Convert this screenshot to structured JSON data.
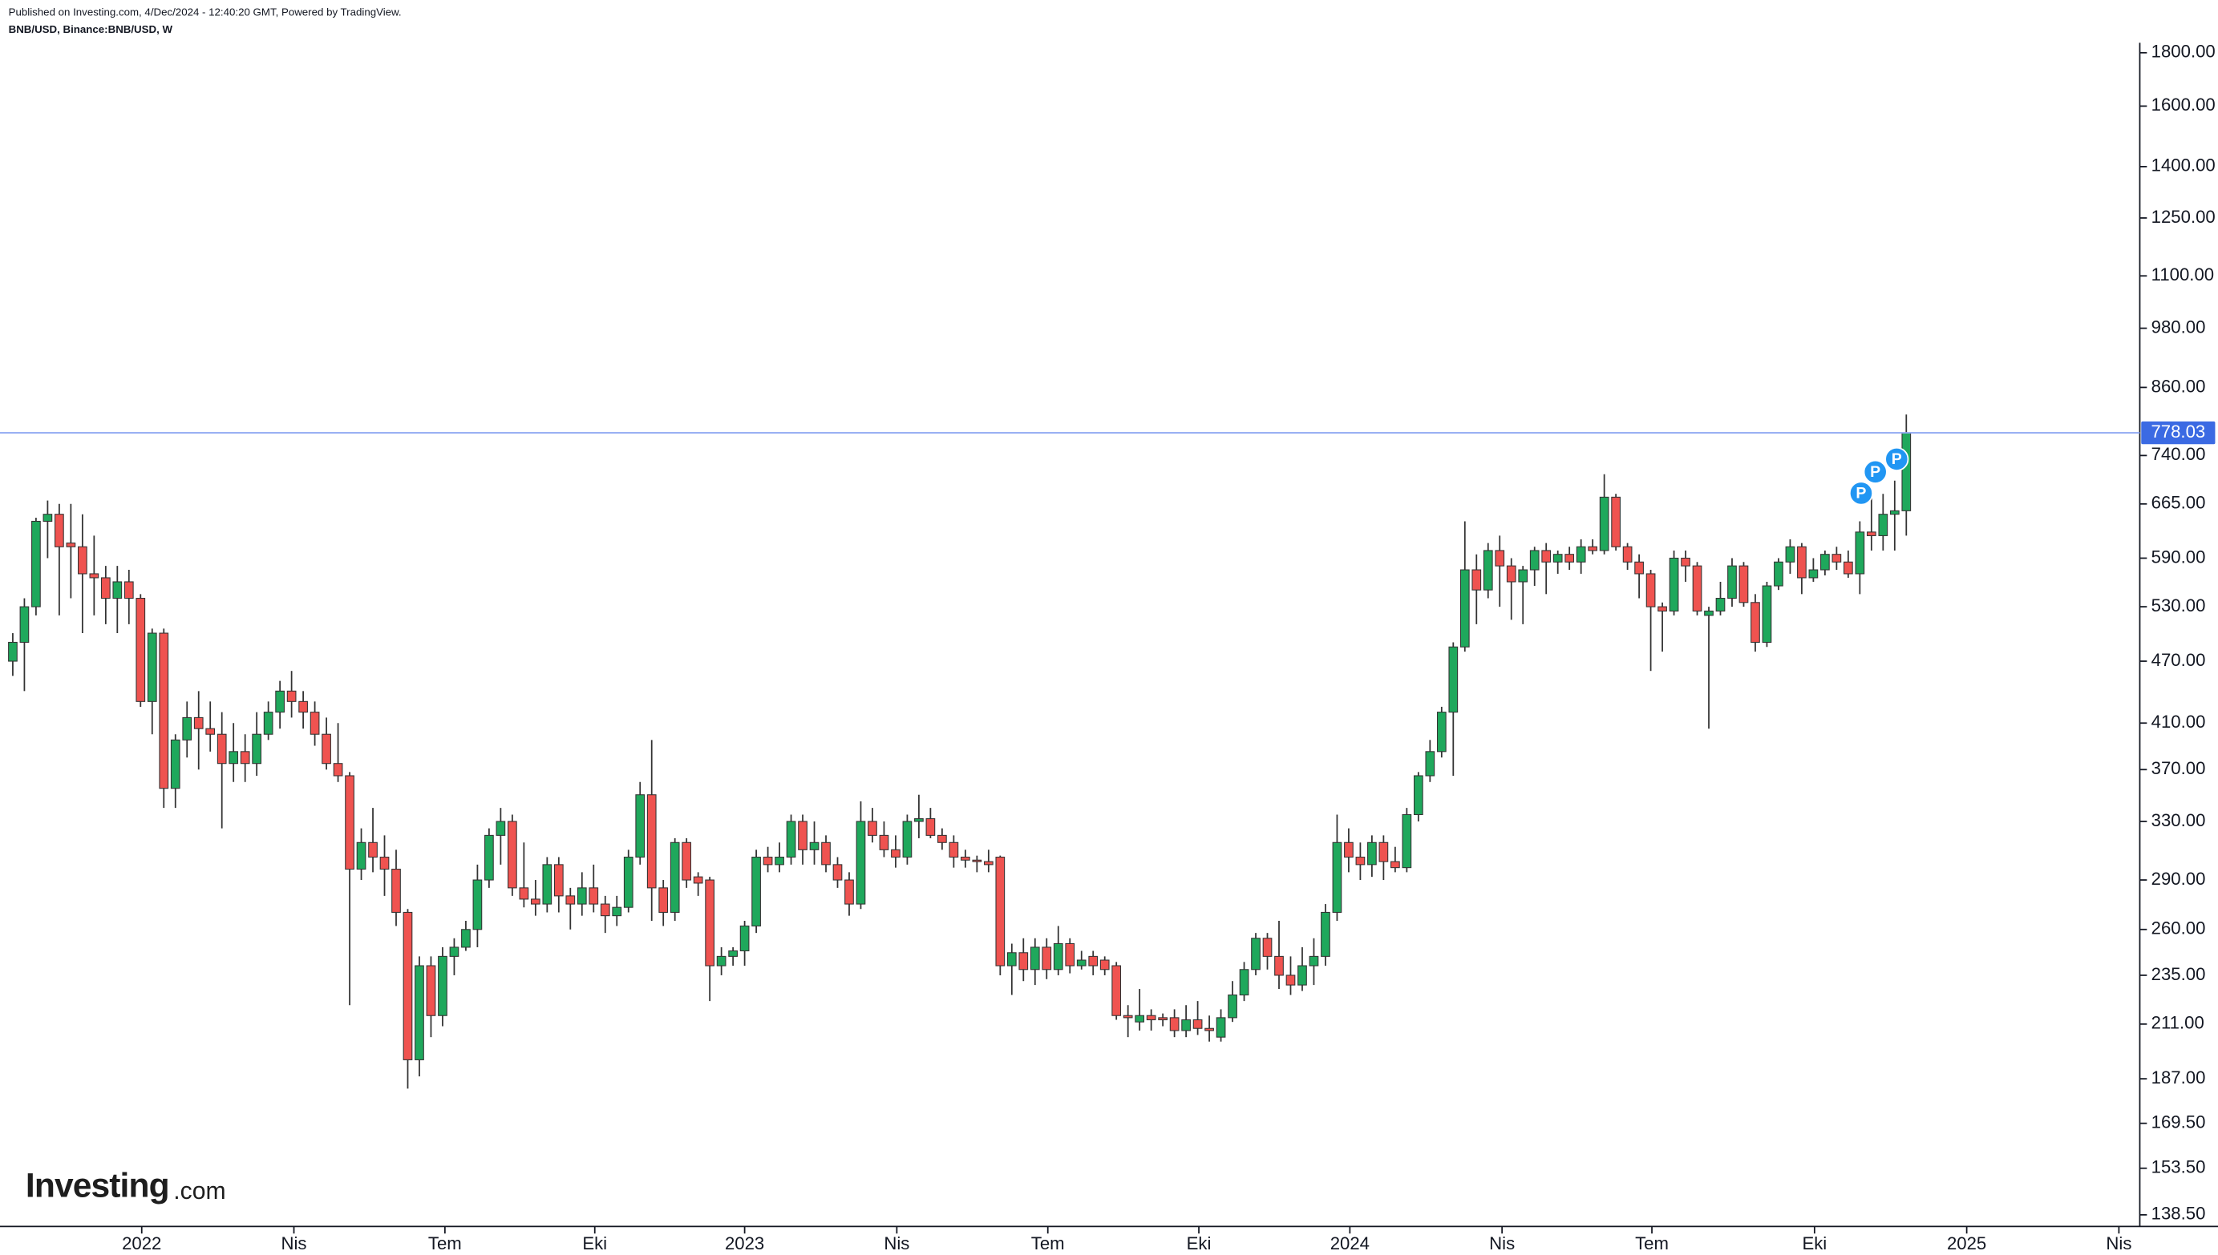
{
  "chart_data": {
    "type": "candlestick",
    "published": "Published on Investing.com, 4/Dec/2024 - 12:40:20 GMT, Powered by TradingView.",
    "symbol": "BNB/USD, Binance:BNB/USD, W",
    "logo": "Investing",
    "logo_suffix": ".com",
    "last_price": 778.03,
    "markers": [
      "P",
      "P",
      "P"
    ],
    "up_color": "#1fa85c",
    "down_color": "#ef5350",
    "log_scale": true,
    "ylim": [
      135,
      1840
    ],
    "yticks": [
      {
        "value": 138.5,
        "label": "138.50"
      },
      {
        "value": 153.5,
        "label": "153.50"
      },
      {
        "value": 169.5,
        "label": "169.50"
      },
      {
        "value": 187,
        "label": "187.00"
      },
      {
        "value": 211,
        "label": "211.00"
      },
      {
        "value": 235,
        "label": "235.00"
      },
      {
        "value": 260,
        "label": "260.00"
      },
      {
        "value": 290,
        "label": "290.00"
      },
      {
        "value": 330,
        "label": "330.00"
      },
      {
        "value": 370,
        "label": "370.00"
      },
      {
        "value": 410,
        "label": "410.00"
      },
      {
        "value": 470,
        "label": "470.00"
      },
      {
        "value": 530,
        "label": "530.00"
      },
      {
        "value": 590,
        "label": "590.00"
      },
      {
        "value": 665,
        "label": "665.00"
      },
      {
        "value": 740,
        "label": "740.00"
      },
      {
        "value": 860,
        "label": "860.00"
      },
      {
        "value": 980,
        "label": "980.00"
      },
      {
        "value": 1100,
        "label": "1100.00"
      },
      {
        "value": 1250,
        "label": "1250.00"
      },
      {
        "value": 1400,
        "label": "1400.00"
      },
      {
        "value": 1600,
        "label": "1600.00"
      },
      {
        "value": 1800,
        "label": "1800.00"
      }
    ],
    "xlim": [
      -1.1,
      183.1
    ],
    "xticks": [
      {
        "value": 11.1,
        "label": "2022"
      },
      {
        "value": 24.2,
        "label": "Nis"
      },
      {
        "value": 37.2,
        "label": "Tem"
      },
      {
        "value": 50.1,
        "label": "Eki"
      },
      {
        "value": 63.0,
        "label": "2023"
      },
      {
        "value": 76.1,
        "label": "Nis"
      },
      {
        "value": 89.1,
        "label": "Tem"
      },
      {
        "value": 102.1,
        "label": "Eki"
      },
      {
        "value": 115.1,
        "label": "2024"
      },
      {
        "value": 128.2,
        "label": "Nis"
      },
      {
        "value": 141.1,
        "label": "Tem"
      },
      {
        "value": 155.1,
        "label": "Eki"
      },
      {
        "value": 168.2,
        "label": "2025"
      },
      {
        "value": 181.3,
        "label": "Nis"
      }
    ],
    "open": [
      470,
      490,
      530,
      640,
      650,
      610,
      605,
      570,
      565,
      540,
      560,
      540,
      430,
      500,
      355,
      395,
      415,
      405,
      400,
      375,
      385,
      375,
      400,
      420,
      440,
      430,
      420,
      400,
      375,
      365,
      297,
      315,
      305,
      297,
      270,
      195,
      240,
      215,
      245,
      250,
      260,
      290,
      320,
      330,
      285,
      278,
      275,
      300,
      280,
      275,
      285,
      275,
      268,
      273,
      305,
      350,
      285,
      270,
      315,
      292,
      290,
      240,
      245,
      248,
      262,
      305,
      300,
      305,
      330,
      310,
      315,
      300,
      290,
      275,
      330,
      320,
      310,
      305,
      330,
      332,
      320,
      315,
      305,
      303,
      302,
      305,
      240,
      247,
      238,
      250,
      238,
      252,
      240,
      245,
      243,
      240,
      215,
      212,
      215,
      214,
      214,
      208,
      213,
      209,
      205,
      214,
      225,
      238,
      255,
      245,
      235,
      230,
      240,
      245,
      270,
      315,
      305,
      300,
      315,
      302,
      298,
      335,
      365,
      385,
      420,
      485,
      575,
      550,
      600,
      580,
      560,
      575,
      600,
      585,
      595,
      585,
      605,
      600,
      675,
      605,
      585,
      570,
      530,
      525,
      590,
      580,
      520,
      525,
      540,
      580,
      535,
      490,
      555,
      585,
      605,
      565,
      575,
      595,
      585,
      570,
      625,
      620,
      650,
      655
    ],
    "high": [
      500,
      540,
      645,
      670,
      665,
      665,
      650,
      620,
      580,
      580,
      575,
      545,
      505,
      505,
      400,
      430,
      440,
      430,
      420,
      410,
      400,
      420,
      430,
      450,
      460,
      440,
      430,
      415,
      410,
      368,
      325,
      340,
      320,
      310,
      272,
      245,
      245,
      250,
      255,
      265,
      300,
      325,
      340,
      335,
      315,
      290,
      305,
      305,
      285,
      295,
      300,
      280,
      280,
      310,
      360,
      395,
      290,
      318,
      318,
      295,
      292,
      250,
      250,
      265,
      310,
      312,
      315,
      335,
      335,
      330,
      320,
      305,
      295,
      345,
      340,
      330,
      320,
      335,
      350,
      340,
      325,
      320,
      310,
      306,
      310,
      306,
      252,
      255,
      255,
      255,
      262,
      255,
      248,
      248,
      245,
      242,
      220,
      228,
      218,
      216,
      218,
      220,
      222,
      215,
      218,
      232,
      242,
      258,
      258,
      265,
      245,
      250,
      255,
      275,
      335,
      325,
      315,
      320,
      320,
      312,
      340,
      368,
      395,
      425,
      490,
      640,
      595,
      610,
      620,
      590,
      580,
      605,
      610,
      600,
      605,
      615,
      615,
      710,
      680,
      610,
      595,
      575,
      535,
      600,
      600,
      585,
      530,
      560,
      590,
      585,
      545,
      560,
      590,
      615,
      610,
      590,
      600,
      605,
      600,
      640,
      680,
      680,
      700,
      810
    ],
    "low": [
      455,
      440,
      520,
      590,
      520,
      540,
      500,
      520,
      510,
      500,
      510,
      425,
      400,
      340,
      340,
      380,
      370,
      385,
      325,
      360,
      360,
      365,
      395,
      405,
      415,
      405,
      390,
      370,
      360,
      220,
      290,
      295,
      280,
      262,
      183,
      188,
      205,
      210,
      235,
      248,
      250,
      285,
      300,
      280,
      273,
      268,
      270,
      270,
      260,
      268,
      270,
      258,
      262,
      270,
      300,
      265,
      262,
      265,
      285,
      280,
      222,
      235,
      240,
      240,
      258,
      295,
      295,
      300,
      300,
      300,
      295,
      285,
      268,
      272,
      315,
      305,
      298,
      300,
      318,
      318,
      310,
      298,
      298,
      295,
      295,
      235,
      225,
      232,
      230,
      233,
      235,
      236,
      238,
      235,
      235,
      213,
      205,
      208,
      208,
      210,
      205,
      205,
      206,
      203,
      203,
      212,
      222,
      235,
      238,
      228,
      225,
      227,
      230,
      240,
      265,
      295,
      290,
      292,
      290,
      295,
      295,
      330,
      360,
      380,
      365,
      480,
      510,
      540,
      530,
      515,
      510,
      555,
      545,
      570,
      575,
      570,
      595,
      595,
      600,
      575,
      540,
      460,
      480,
      520,
      560,
      520,
      405,
      520,
      530,
      530,
      480,
      485,
      550,
      570,
      545,
      560,
      568,
      575,
      565,
      545,
      600,
      600,
      600,
      620
    ],
    "close": [
      490,
      530,
      640,
      650,
      605,
      605,
      570,
      565,
      540,
      560,
      540,
      430,
      500,
      355,
      395,
      415,
      405,
      400,
      375,
      385,
      375,
      400,
      420,
      440,
      430,
      420,
      400,
      375,
      365,
      297,
      315,
      305,
      297,
      270,
      195,
      240,
      215,
      245,
      250,
      260,
      290,
      320,
      330,
      285,
      278,
      275,
      300,
      280,
      275,
      285,
      275,
      268,
      273,
      305,
      350,
      285,
      270,
      315,
      290,
      288,
      240,
      245,
      248,
      262,
      305,
      300,
      305,
      330,
      310,
      315,
      300,
      290,
      275,
      330,
      320,
      310,
      305,
      330,
      332,
      320,
      315,
      305,
      303,
      302,
      300,
      240,
      247,
      238,
      250,
      238,
      252,
      240,
      243,
      240,
      238,
      215,
      214,
      215,
      213,
      213,
      208,
      213,
      209,
      208,
      214,
      225,
      238,
      255,
      245,
      235,
      230,
      240,
      245,
      270,
      315,
      305,
      300,
      315,
      302,
      298,
      335,
      365,
      385,
      420,
      485,
      575,
      550,
      600,
      580,
      560,
      575,
      600,
      585,
      595,
      585,
      605,
      600,
      675,
      605,
      585,
      570,
      530,
      525,
      590,
      580,
      525,
      525,
      540,
      580,
      535,
      490,
      555,
      585,
      605,
      565,
      575,
      595,
      585,
      570,
      625,
      620,
      650,
      655,
      778.03
    ]
  }
}
